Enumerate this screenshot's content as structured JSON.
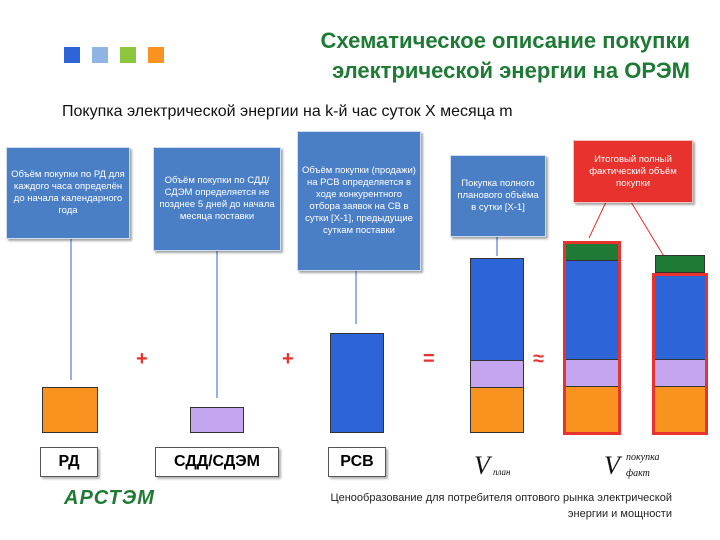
{
  "colors": {
    "title_green": "#1e7a34",
    "callout_blue": "#4a7fc6",
    "callout_red": "#e8322d",
    "orange": "#f7931e",
    "lilac": "#c4a5f0",
    "blue": "#2d64d8",
    "dark_green": "#1e7a34",
    "highlight_red": "#e8322d"
  },
  "header": {
    "title_line1": "Схематическое описание покупки",
    "title_line2": "электрической энергии на ОРЭМ"
  },
  "subtitle": "Покупка электрической энергии на k-й час суток X месяца m",
  "callouts": {
    "rd": "Объём покупки по РД для каждого часа определён до начала календарного года",
    "sdd": "Объём покупки по СДД/СДЭМ определяется не позднее 5 дней до начала месяца поставки",
    "rsv": "Объём покупки (продажи) на РСВ определяется в ходе конкурентного отбора заявок на СВ в сутки [X-1], предыдущие суткам поставки",
    "plan": "Покупка полного планового объёма в сутки [X-1]",
    "total": "Итоговый полный фактический объём покупки"
  },
  "operators": {
    "plus1": "+",
    "plus2": "+",
    "equals": "=",
    "approx": "≈"
  },
  "labels": {
    "rd": "РД",
    "sdd": "СДД/СДЭМ",
    "rsv": "РСВ"
  },
  "formulas": {
    "v_plan": "V",
    "v_plan_sub": "план",
    "v_fact": "V",
    "v_fact_sup": "покупка",
    "v_fact_sub": "факт"
  },
  "footer": {
    "line1": "Ценообразование для потребителя оптового рынка электрической",
    "line2": "энергии и мощности"
  },
  "logo": "АРСТЭМ"
}
